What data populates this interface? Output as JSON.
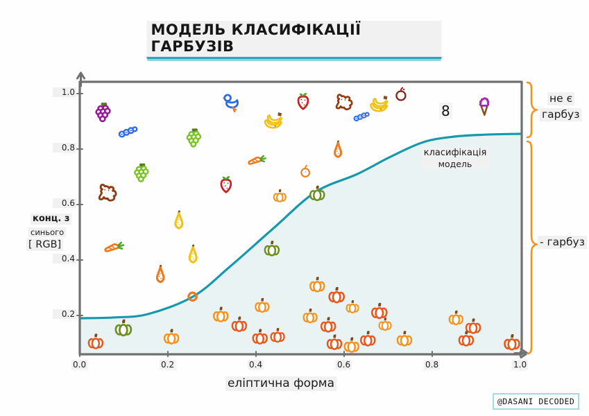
{
  "title": "МОДЕЛЬ КЛАСИФІКАЦІЇ ГАРБУЗІВ",
  "watermark": "@DASANI DECODED",
  "palette": {
    "ink": "#1c1c1c",
    "highlight": "#f1f1f1",
    "axis": "#707070",
    "curve": "#1899ab",
    "area": "#e9f3f3",
    "underline": "#2aa7b8",
    "bracket": "#f5921e",
    "badge-border": "#a5d9de",
    "orange": "#f5921e",
    "red-orange": "#e8571d",
    "pumpkin-green": "#6d8e20",
    "stem": "#7b4a1e",
    "grape-purple": "#951b9b",
    "grape-green": "#7cc427",
    "leaf-dark": "#5c7a1c",
    "leaf-bright": "#52a52a",
    "strawberry": "#c62322",
    "banana": "#f2c21c",
    "brown": "#8a4d1d",
    "carrot": "#f0791d",
    "apple": "#8e1d14",
    "dog": "#8f3c12",
    "duck-blue": "#2f6ce4",
    "icecream": "#a426b4"
  },
  "right_labels": {
    "top_line1": "не є",
    "top_line2": "гарбуз",
    "bottom": "- гарбуз"
  },
  "chart_data": {
    "type": "scatter",
    "title": "МОДЕЛЬ КЛАСИФІКАЦІЇ ГАРБУЗІВ",
    "xlabel": "еліптична форма",
    "ylabel": "конц. з синього [ RGB]",
    "ylabel_lines": [
      "конц. з",
      "синього",
      "[ RGB]"
    ],
    "xlim": [
      0.0,
      1.0
    ],
    "ylim": [
      0.06,
      1.04
    ],
    "x_ticks": [
      "0.0",
      "0.2",
      "0.4",
      "0.6",
      "0.8",
      "1.0"
    ],
    "y_ticks": [
      "0.2",
      "0.4",
      "0.6",
      "0.8",
      "1.0"
    ],
    "grid": false,
    "model_label_lines": [
      "класифікація",
      "модель"
    ],
    "eight_doodle": "8",
    "classes": [
      {
        "label": "не є гарбуз",
        "side": "right",
        "y_range": [
          0.86,
          1.04
        ]
      },
      {
        "label": "- гарбуз",
        "side": "right",
        "y_range": [
          0.06,
          0.85
        ]
      }
    ],
    "curve_name": "класифікація модель",
    "curve": [
      [
        0.0,
        0.19
      ],
      [
        0.08,
        0.193
      ],
      [
        0.155,
        0.205
      ],
      [
        0.257,
        0.268
      ],
      [
        0.34,
        0.375
      ],
      [
        0.44,
        0.515
      ],
      [
        0.535,
        0.645
      ],
      [
        0.63,
        0.71
      ],
      [
        0.705,
        0.772
      ],
      [
        0.78,
        0.825
      ],
      [
        0.85,
        0.845
      ],
      [
        0.92,
        0.852
      ],
      [
        1.0,
        0.855
      ]
    ],
    "points": [
      {
        "t": "grapes-purple",
        "x": 0.055,
        "y": 0.93,
        "s": 1.3
      },
      {
        "t": "caterpillar",
        "x": 0.109,
        "y": 0.862,
        "s": 1.2
      },
      {
        "t": "duck",
        "x": 0.346,
        "y": 0.965,
        "s": 1.3
      },
      {
        "t": "grapes-green",
        "x": 0.261,
        "y": 0.838,
        "s": 1.25
      },
      {
        "t": "grapes-green",
        "x": 0.142,
        "y": 0.712,
        "s": 1.25
      },
      {
        "t": "strawberry",
        "x": 0.507,
        "y": 0.975,
        "s": 1.2
      },
      {
        "t": "dog",
        "x": 0.6,
        "y": 0.965,
        "s": 1.3
      },
      {
        "t": "banana",
        "x": 0.679,
        "y": 0.965,
        "s": 1.3
      },
      {
        "t": "apple-dark",
        "x": 0.729,
        "y": 0.998,
        "s": 1.0
      },
      {
        "t": "caterpillar",
        "x": 0.639,
        "y": 0.917,
        "s": 1.0
      },
      {
        "t": "banana",
        "x": 0.439,
        "y": 0.905,
        "s": 1.3
      },
      {
        "t": "icecream",
        "x": 0.918,
        "y": 0.953,
        "s": 1.3
      },
      {
        "t": "dog",
        "x": 0.063,
        "y": 0.638,
        "s": 1.4
      },
      {
        "t": "strawberry",
        "x": 0.332,
        "y": 0.675,
        "s": 1.2
      },
      {
        "t": "carrot",
        "x": 0.403,
        "y": 0.768,
        "s": 1.2
      },
      {
        "t": "pear-orange",
        "x": 0.586,
        "y": 0.798,
        "s": 1.25
      },
      {
        "t": "apple-orange",
        "x": 0.512,
        "y": 0.72,
        "s": 0.9
      },
      {
        "t": "pear-yellow",
        "x": 0.225,
        "y": 0.543,
        "s": 1.35
      },
      {
        "t": "carrot",
        "x": 0.079,
        "y": 0.455,
        "s": 1.3
      },
      {
        "t": "pear-yellow",
        "x": 0.257,
        "y": 0.42,
        "s": 1.35
      },
      {
        "t": "pear-orange",
        "x": 0.183,
        "y": 0.348,
        "s": 1.3
      },
      {
        "t": "ring",
        "x": 0.256,
        "y": 0.268,
        "s": 1.0
      },
      {
        "t": "pumpkin-orange",
        "x": 0.454,
        "y": 0.633,
        "s": 0.85
      },
      {
        "t": "pumpkin-green",
        "x": 0.539,
        "y": 0.642,
        "s": 1.0
      },
      {
        "t": "pumpkin-green",
        "x": 0.436,
        "y": 0.443,
        "s": 1.0
      },
      {
        "t": "pumpkin-red",
        "x": 0.036,
        "y": 0.108,
        "s": 1.0
      },
      {
        "t": "pumpkin-green",
        "x": 0.099,
        "y": 0.157,
        "s": 1.1
      },
      {
        "t": "pumpkin-orange",
        "x": 0.208,
        "y": 0.125,
        "s": 1.0
      },
      {
        "t": "pumpkin-orange",
        "x": 0.32,
        "y": 0.205,
        "s": 1.0
      },
      {
        "t": "pumpkin-red",
        "x": 0.362,
        "y": 0.17,
        "s": 1.0
      },
      {
        "t": "pumpkin-orange",
        "x": 0.414,
        "y": 0.238,
        "s": 0.95
      },
      {
        "t": "pumpkin-red",
        "x": 0.409,
        "y": 0.125,
        "s": 1.0
      },
      {
        "t": "pumpkin-red",
        "x": 0.449,
        "y": 0.13,
        "s": 0.95
      },
      {
        "t": "pumpkin-orange",
        "x": 0.539,
        "y": 0.313,
        "s": 1.0
      },
      {
        "t": "pumpkin-red",
        "x": 0.583,
        "y": 0.275,
        "s": 1.05
      },
      {
        "t": "pumpkin-orange",
        "x": 0.619,
        "y": 0.233,
        "s": 0.85
      },
      {
        "t": "pumpkin-red",
        "x": 0.68,
        "y": 0.218,
        "s": 1.05
      },
      {
        "t": "pumpkin-orange",
        "x": 0.523,
        "y": 0.2,
        "s": 0.95
      },
      {
        "t": "pumpkin-red",
        "x": 0.564,
        "y": 0.168,
        "s": 1.0
      },
      {
        "t": "pumpkin-orange",
        "x": 0.693,
        "y": 0.17,
        "s": 0.85
      },
      {
        "t": "pumpkin-red",
        "x": 0.578,
        "y": 0.105,
        "s": 1.0
      },
      {
        "t": "pumpkin-orange",
        "x": 0.617,
        "y": 0.095,
        "s": 1.0
      },
      {
        "t": "pumpkin-red",
        "x": 0.654,
        "y": 0.118,
        "s": 1.0
      },
      {
        "t": "pumpkin-orange",
        "x": 0.737,
        "y": 0.118,
        "s": 1.0
      },
      {
        "t": "pumpkin-orange",
        "x": 0.854,
        "y": 0.193,
        "s": 0.95
      },
      {
        "t": "pumpkin-red",
        "x": 0.893,
        "y": 0.163,
        "s": 1.0
      },
      {
        "t": "pumpkin-red",
        "x": 0.877,
        "y": 0.118,
        "s": 1.0
      },
      {
        "t": "pumpkin-red",
        "x": 0.981,
        "y": 0.105,
        "s": 1.05
      }
    ]
  }
}
